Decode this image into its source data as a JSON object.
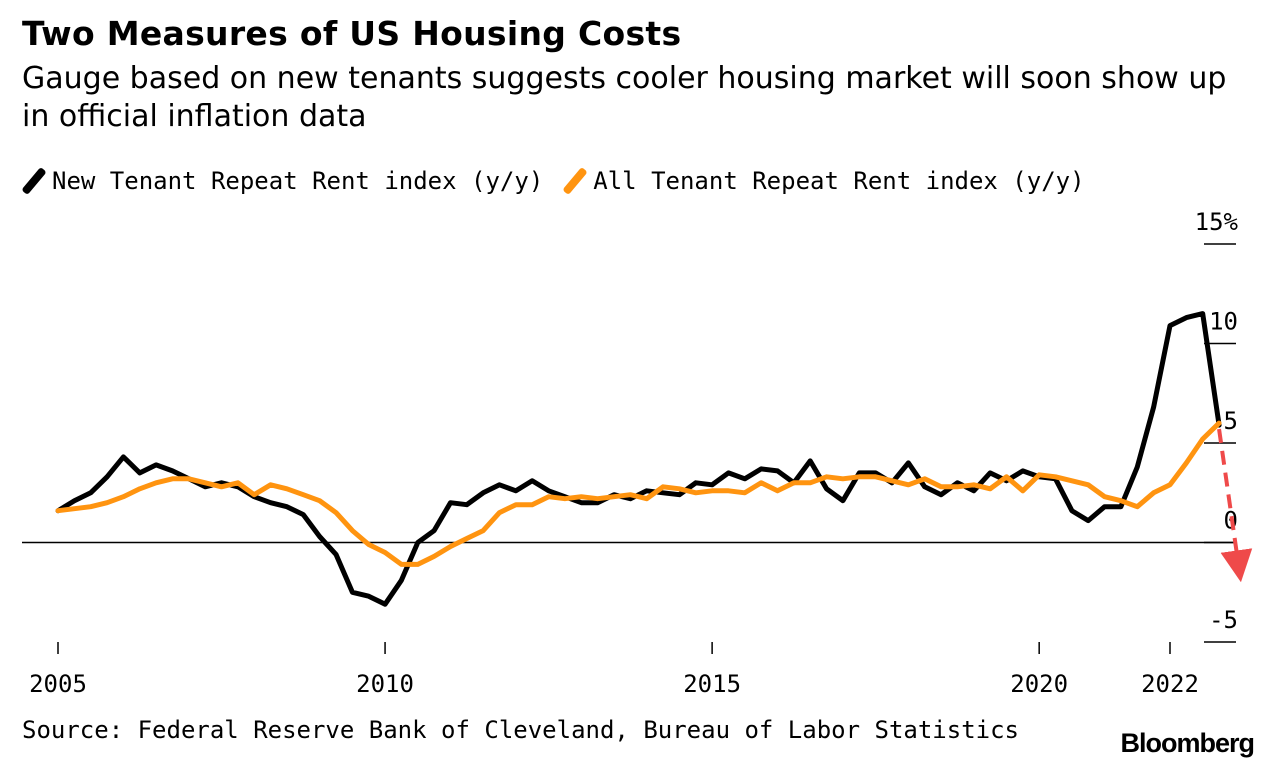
{
  "title": "Two Measures of US Housing Costs",
  "subtitle": "Gauge based on new tenants suggests cooler housing market will soon show up in official inflation data",
  "source": "Source: Federal Reserve Bank of Cleveland, Bureau of Labor Statistics",
  "brand": "Bloomberg",
  "colors": {
    "new_tenant": "#000000",
    "all_tenant": "#ff9410",
    "projection": "#ef4a4a"
  },
  "chart_data": {
    "type": "line",
    "title": "Two Measures of US Housing Costs",
    "xlabel": "",
    "ylabel": "",
    "xlim": [
      2004.5,
      2023.3
    ],
    "ylim": [
      -5,
      15
    ],
    "yticks": [
      -5,
      0,
      5,
      10,
      15
    ],
    "ytick_labels": [
      "-5",
      "0",
      "5",
      "10",
      "15%"
    ],
    "xticks": [
      2005,
      2010,
      2015,
      2020,
      2022
    ],
    "xtick_labels": [
      "2005",
      "2010",
      "2015",
      "2020",
      "2022"
    ],
    "zero_line": 0,
    "grid": false,
    "legend_position": "top-left",
    "series": [
      {
        "name": "New Tenant Repeat Rent index (y/y)",
        "color": "#000000",
        "x": [
          2005.0,
          2005.25,
          2005.5,
          2005.75,
          2006.0,
          2006.25,
          2006.5,
          2006.75,
          2007.0,
          2007.25,
          2007.5,
          2007.75,
          2008.0,
          2008.25,
          2008.5,
          2008.75,
          2009.0,
          2009.25,
          2009.5,
          2009.75,
          2010.0,
          2010.25,
          2010.5,
          2010.75,
          2011.0,
          2011.25,
          2011.5,
          2011.75,
          2012.0,
          2012.25,
          2012.5,
          2012.75,
          2013.0,
          2013.25,
          2013.5,
          2013.75,
          2014.0,
          2014.25,
          2014.5,
          2014.75,
          2015.0,
          2015.25,
          2015.5,
          2015.75,
          2016.0,
          2016.25,
          2016.5,
          2016.75,
          2017.0,
          2017.25,
          2017.5,
          2017.75,
          2018.0,
          2018.25,
          2018.5,
          2018.75,
          2019.0,
          2019.25,
          2019.5,
          2019.75,
          2020.0,
          2020.25,
          2020.5,
          2020.75,
          2021.0,
          2021.25,
          2021.5,
          2021.75,
          2022.0,
          2022.25,
          2022.5,
          2022.75
        ],
        "values": [
          1.6,
          2.1,
          2.5,
          3.3,
          4.3,
          3.5,
          3.9,
          3.6,
          3.2,
          2.8,
          3.0,
          2.8,
          2.3,
          2.0,
          1.8,
          1.4,
          0.3,
          -0.6,
          -2.5,
          -2.7,
          -3.1,
          -1.9,
          0.0,
          0.6,
          2.0,
          1.9,
          2.5,
          2.9,
          2.6,
          3.1,
          2.6,
          2.3,
          2.0,
          2.0,
          2.4,
          2.2,
          2.6,
          2.5,
          2.4,
          3.0,
          2.9,
          3.5,
          3.2,
          3.7,
          3.6,
          3.0,
          4.1,
          2.7,
          2.1,
          3.5,
          3.5,
          3.0,
          4.0,
          2.8,
          2.4,
          3.0,
          2.6,
          3.5,
          3.1,
          3.6,
          3.3,
          3.2,
          1.6,
          1.1,
          1.8,
          1.8,
          3.8,
          6.8,
          10.9,
          11.3,
          11.5,
          5.9
        ]
      },
      {
        "name": "All Tenant Repeat Rent index (y/y)",
        "color": "#ff9410",
        "x": [
          2005.0,
          2005.25,
          2005.5,
          2005.75,
          2006.0,
          2006.25,
          2006.5,
          2006.75,
          2007.0,
          2007.25,
          2007.5,
          2007.75,
          2008.0,
          2008.25,
          2008.5,
          2008.75,
          2009.0,
          2009.25,
          2009.5,
          2009.75,
          2010.0,
          2010.25,
          2010.5,
          2010.75,
          2011.0,
          2011.25,
          2011.5,
          2011.75,
          2012.0,
          2012.25,
          2012.5,
          2012.75,
          2013.0,
          2013.25,
          2013.5,
          2013.75,
          2014.0,
          2014.25,
          2014.5,
          2014.75,
          2015.0,
          2015.25,
          2015.5,
          2015.75,
          2016.0,
          2016.25,
          2016.5,
          2016.75,
          2017.0,
          2017.25,
          2017.5,
          2017.75,
          2018.0,
          2018.25,
          2018.5,
          2018.75,
          2019.0,
          2019.25,
          2019.5,
          2019.75,
          2020.0,
          2020.25,
          2020.5,
          2020.75,
          2021.0,
          2021.25,
          2021.5,
          2021.75,
          2022.0,
          2022.25,
          2022.5,
          2022.75
        ],
        "values": [
          1.6,
          1.7,
          1.8,
          2.0,
          2.3,
          2.7,
          3.0,
          3.2,
          3.2,
          3.0,
          2.8,
          3.0,
          2.4,
          2.9,
          2.7,
          2.4,
          2.1,
          1.5,
          0.6,
          -0.1,
          -0.5,
          -1.1,
          -1.1,
          -0.7,
          -0.2,
          0.2,
          0.6,
          1.5,
          1.9,
          1.9,
          2.3,
          2.2,
          2.3,
          2.2,
          2.3,
          2.4,
          2.2,
          2.8,
          2.7,
          2.5,
          2.6,
          2.6,
          2.5,
          3.0,
          2.6,
          3.0,
          3.0,
          3.3,
          3.2,
          3.3,
          3.3,
          3.1,
          2.9,
          3.2,
          2.8,
          2.8,
          2.9,
          2.7,
          3.3,
          2.6,
          3.4,
          3.3,
          3.1,
          2.9,
          2.3,
          2.1,
          1.8,
          2.5,
          2.9,
          4.0,
          5.2,
          6.0
        ]
      }
    ],
    "projection": {
      "from": [
        2022.75,
        5.7
      ],
      "to": [
        2023.05,
        -1.2
      ]
    }
  },
  "legend": {
    "items": [
      {
        "label": "New Tenant Repeat Rent index (y/y)",
        "color": "#000000"
      },
      {
        "label": "All Tenant Repeat Rent index (y/y)",
        "color": "#ff9410"
      }
    ]
  }
}
